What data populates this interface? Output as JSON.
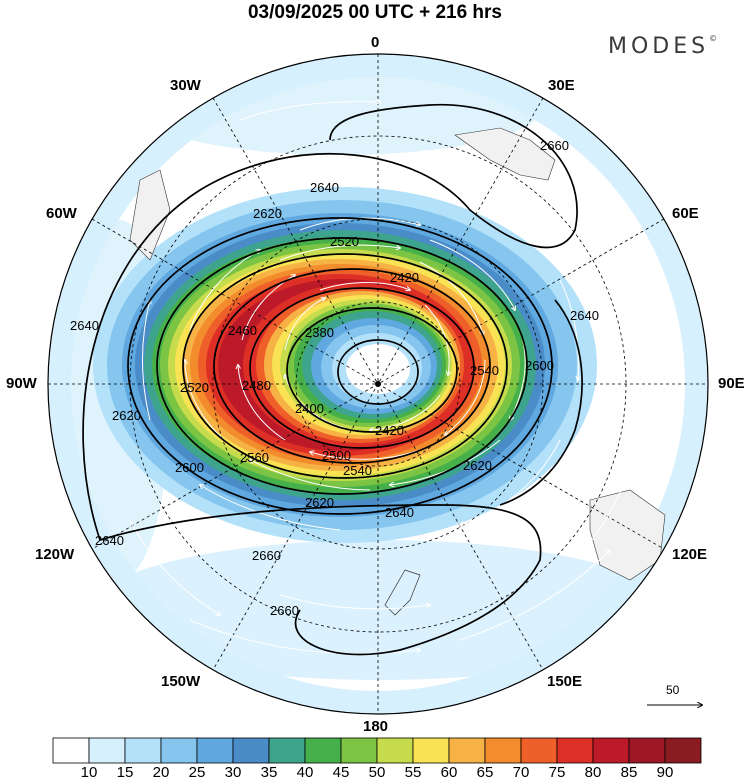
{
  "title": "03/09/2025  00 UTC  + 216 hrs",
  "logo": "MODES",
  "logo_mark": "©",
  "longitude_labels": {
    "top": "0",
    "top_right": "30E",
    "upper_right": "60E",
    "right": "90E",
    "lower_right": "120E",
    "bottom_right": "150E",
    "bottom": "180",
    "bottom_left": "150W",
    "lower_left": "120W",
    "left": "90W",
    "upper_left": "60W",
    "top_left": "30W"
  },
  "contour_labels": [
    "2380",
    "2400",
    "2420",
    "2420",
    "2460",
    "2480",
    "2500",
    "2520",
    "2520",
    "2540",
    "2540",
    "2560",
    "2600",
    "2600",
    "2620",
    "2620",
    "2620",
    "2620",
    "2640",
    "2640",
    "2640",
    "2640",
    "2640",
    "2660",
    "2660",
    "2660"
  ],
  "reference_vector": {
    "label": "50"
  },
  "colorbar": {
    "ticks": [
      "10",
      "15",
      "20",
      "25",
      "30",
      "35",
      "40",
      "45",
      "50",
      "55",
      "60",
      "65",
      "70",
      "75",
      "80",
      "85",
      "90"
    ],
    "colors": [
      "#ffffff",
      "#d7f0fd",
      "#b3e1fa",
      "#86c6ee",
      "#5fa8e0",
      "#4a8cc8",
      "#3ea48e",
      "#46b04a",
      "#7cc443",
      "#c6dc4c",
      "#f9e354",
      "#f7b245",
      "#f28c2c",
      "#ee5f2a",
      "#de2f27",
      "#bd1a29",
      "#9d1824",
      "#8a1b20"
    ]
  }
}
